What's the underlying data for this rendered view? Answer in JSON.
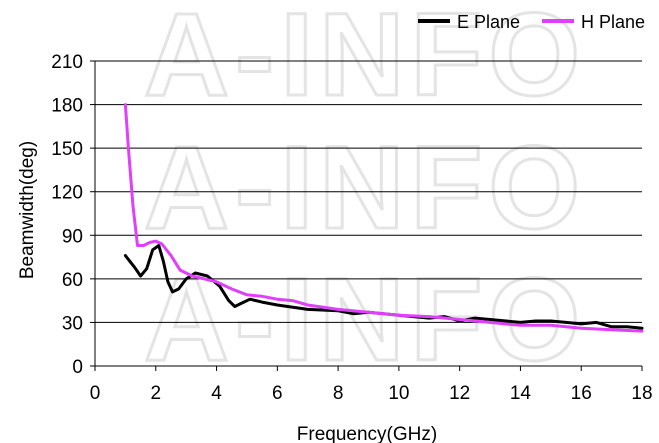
{
  "watermark": "A-INFO",
  "chart_data": {
    "type": "line",
    "xlabel": "Frequency(GHz)",
    "ylabel": "Beamwidth(deg)",
    "xlim": [
      0,
      18
    ],
    "ylim": [
      0,
      210
    ],
    "xticks": [
      0,
      2,
      4,
      6,
      8,
      10,
      12,
      14,
      16,
      18
    ],
    "yticks": [
      0,
      30,
      60,
      90,
      120,
      150,
      180,
      210
    ],
    "grid": "horizontal",
    "legend_position": "top-right",
    "series": [
      {
        "name": "E Plane",
        "color": "#000000",
        "points": [
          [
            1.0,
            76
          ],
          [
            1.3,
            68
          ],
          [
            1.5,
            62
          ],
          [
            1.7,
            67
          ],
          [
            1.9,
            80
          ],
          [
            2.1,
            83
          ],
          [
            2.25,
            72
          ],
          [
            2.4,
            58
          ],
          [
            2.55,
            51
          ],
          [
            2.75,
            53
          ],
          [
            3.0,
            60
          ],
          [
            3.3,
            64
          ],
          [
            3.7,
            62
          ],
          [
            4.1,
            55
          ],
          [
            4.4,
            45
          ],
          [
            4.6,
            41
          ],
          [
            4.8,
            43
          ],
          [
            5.1,
            46
          ],
          [
            5.5,
            44
          ],
          [
            6.0,
            42
          ],
          [
            7.0,
            39
          ],
          [
            8.0,
            38
          ],
          [
            8.5,
            36
          ],
          [
            9.0,
            37
          ],
          [
            10.0,
            35
          ],
          [
            11.0,
            33
          ],
          [
            11.5,
            34
          ],
          [
            12.0,
            31
          ],
          [
            12.5,
            33
          ],
          [
            13.0,
            32
          ],
          [
            14.0,
            30
          ],
          [
            14.5,
            31
          ],
          [
            15.0,
            31
          ],
          [
            15.5,
            30
          ],
          [
            16.0,
            29
          ],
          [
            16.5,
            30
          ],
          [
            17.0,
            27
          ],
          [
            17.5,
            27
          ],
          [
            18.0,
            26
          ]
        ]
      },
      {
        "name": "H Plane",
        "color": "#e040fb",
        "points": [
          [
            1.0,
            180
          ],
          [
            1.1,
            150
          ],
          [
            1.25,
            110
          ],
          [
            1.4,
            83
          ],
          [
            1.6,
            83
          ],
          [
            1.8,
            85
          ],
          [
            2.0,
            86
          ],
          [
            2.2,
            84
          ],
          [
            2.5,
            76
          ],
          [
            2.8,
            66
          ],
          [
            3.2,
            62
          ],
          [
            3.6,
            60
          ],
          [
            4.0,
            58
          ],
          [
            4.5,
            53
          ],
          [
            5.0,
            49
          ],
          [
            5.5,
            48
          ],
          [
            6.0,
            46
          ],
          [
            6.5,
            45
          ],
          [
            7.0,
            42
          ],
          [
            8.0,
            39
          ],
          [
            9.0,
            37
          ],
          [
            10.0,
            35
          ],
          [
            11.0,
            34
          ],
          [
            12.0,
            32
          ],
          [
            13.0,
            30
          ],
          [
            14.0,
            28
          ],
          [
            15.0,
            28
          ],
          [
            16.0,
            26
          ],
          [
            17.0,
            25
          ],
          [
            18.0,
            24
          ]
        ]
      }
    ]
  }
}
